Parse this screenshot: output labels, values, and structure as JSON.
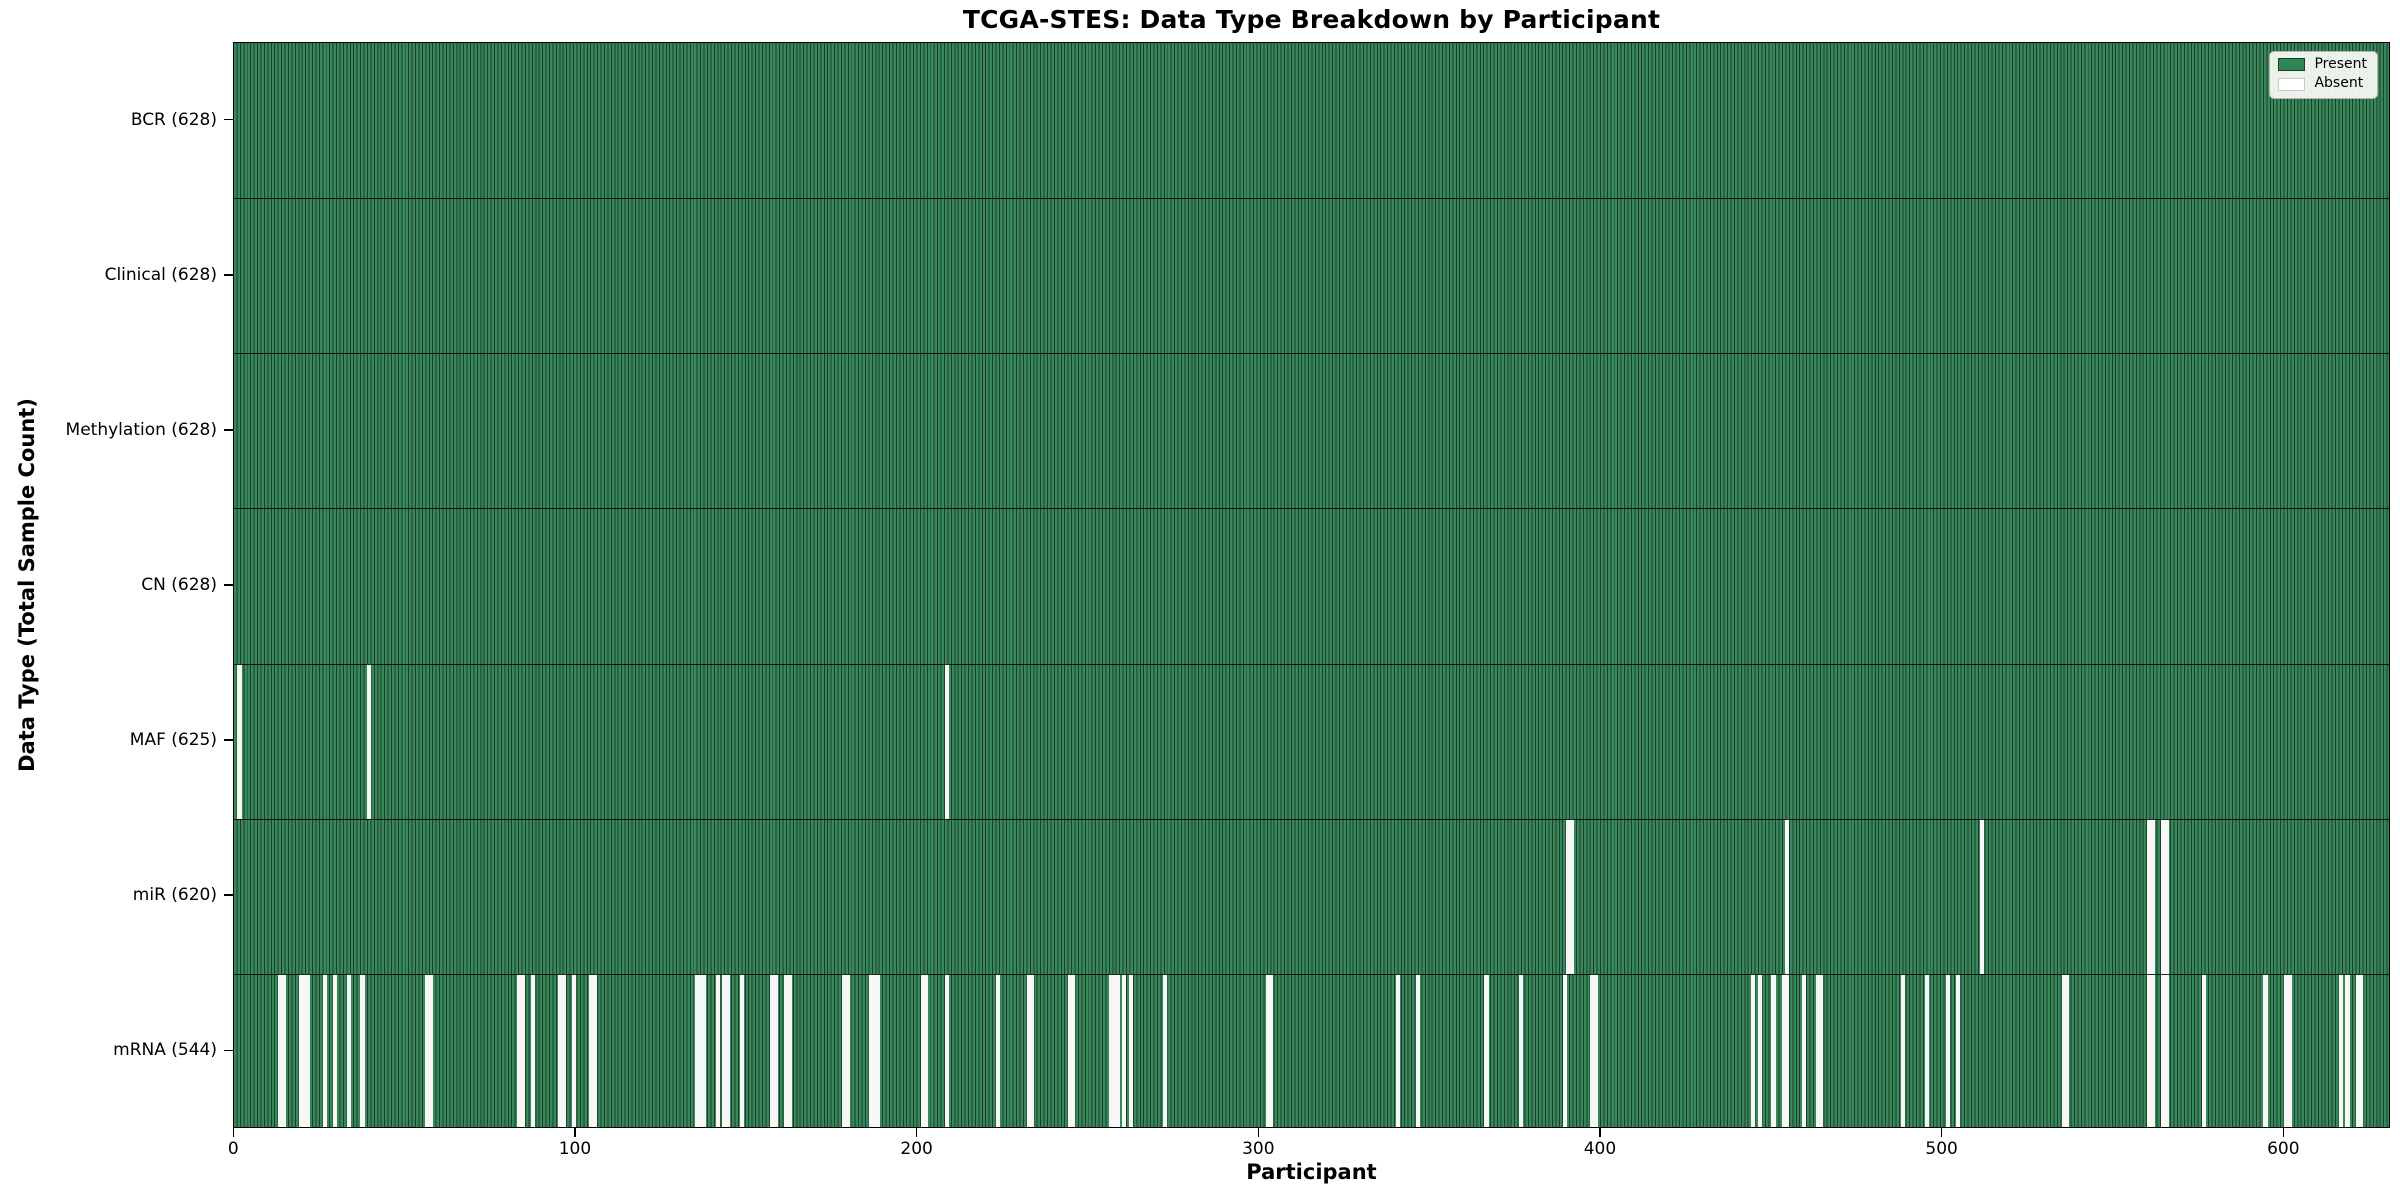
{
  "legend": {
    "items": [
      {
        "label": "Present",
        "color": "#2e8655"
      },
      {
        "label": "Absent",
        "color": "#ffffff"
      }
    ]
  },
  "chart_data": {
    "type": "heatmap",
    "title": "TCGA-STES: Data Type Breakdown by Participant",
    "xlabel": "Participant",
    "ylabel": "Data Type (Total Sample Count)",
    "x_ticks": [
      0,
      100,
      200,
      300,
      400,
      500,
      600
    ],
    "x_range": [
      0,
      628
    ],
    "n_participants": 628,
    "present_color": "#37895b",
    "present_edge_color": "#1d3c29",
    "absent_color": "#f7f7f7",
    "legend_position": "upper right",
    "rows": [
      {
        "label": "BCR (628)",
        "data_type": "BCR",
        "present_count": 628,
        "total": 628,
        "absent_participants": []
      },
      {
        "label": "Clinical (628)",
        "data_type": "Clinical",
        "present_count": 628,
        "total": 628,
        "absent_participants": []
      },
      {
        "label": "Methylation (628)",
        "data_type": "Methylation",
        "present_count": 628,
        "total": 628,
        "absent_participants": []
      },
      {
        "label": "CN (628)",
        "data_type": "CN",
        "present_count": 628,
        "total": 628,
        "absent_participants": []
      },
      {
        "label": "MAF (625)",
        "data_type": "MAF",
        "present_count": 625,
        "total": 628,
        "absent_participants": [
          1,
          39,
          208
        ]
      },
      {
        "label": "miR (620)",
        "data_type": "miR",
        "present_count": 620,
        "total": 628,
        "absent_participants": [
          390,
          391,
          454,
          511,
          560,
          561,
          564,
          565
        ]
      },
      {
        "label": "mRNA (544)",
        "data_type": "mRNA",
        "present_count": 544,
        "total": 628,
        "absent_participants": [
          13,
          14,
          19,
          20,
          21,
          26,
          29,
          33,
          37,
          56,
          57,
          83,
          84,
          87,
          95,
          96,
          99,
          104,
          105,
          135,
          136,
          137,
          141,
          143,
          144,
          148,
          157,
          158,
          161,
          162,
          178,
          179,
          186,
          187,
          188,
          201,
          202,
          208,
          223,
          232,
          233,
          244,
          245,
          256,
          257,
          258,
          260,
          262,
          272,
          302,
          303,
          340,
          346,
          366,
          376,
          389,
          397,
          398,
          444,
          446,
          450,
          453,
          454,
          459,
          463,
          464,
          488,
          495,
          501,
          504,
          535,
          536,
          560,
          561,
          564,
          565,
          576,
          594,
          600,
          601,
          616,
          618,
          621,
          622
        ]
      }
    ]
  }
}
